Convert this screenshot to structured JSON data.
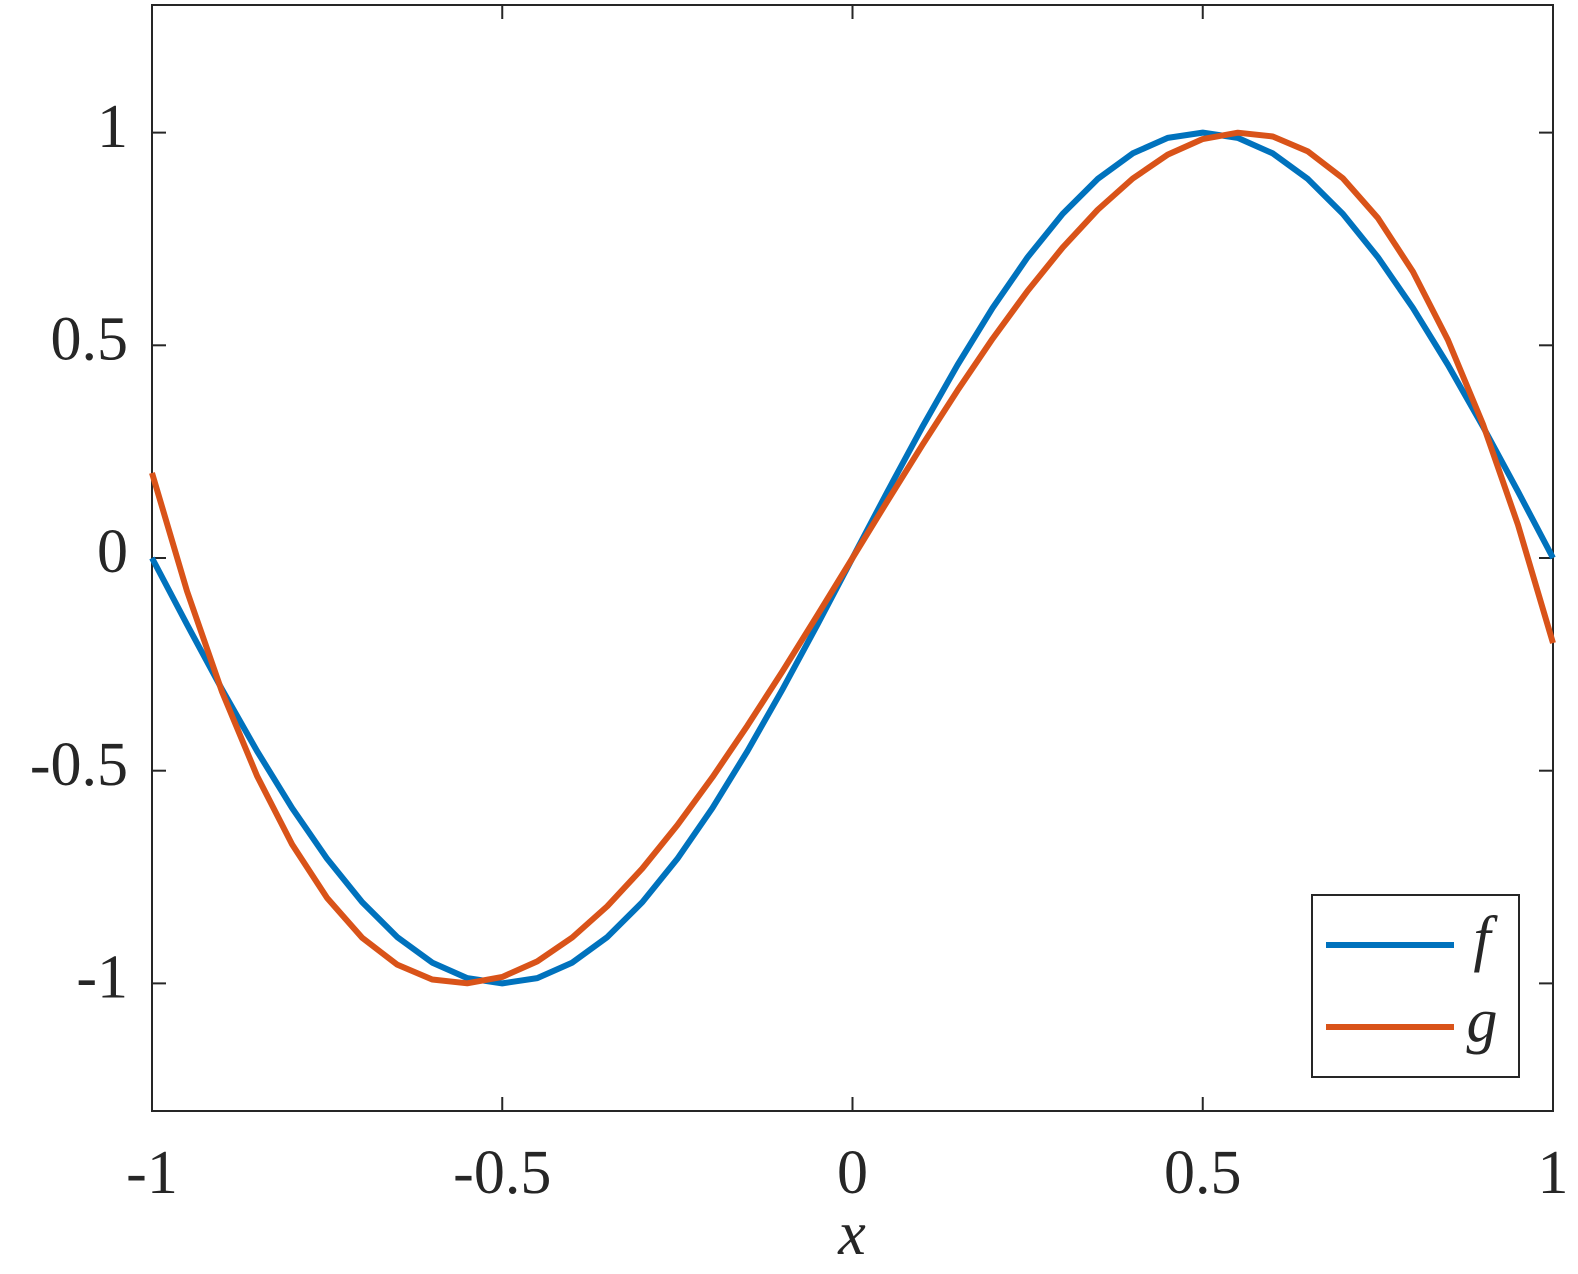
{
  "chart_data": {
    "type": "line",
    "x_label": "x",
    "x": [
      -1,
      -0.95,
      -0.9,
      -0.85,
      -0.8,
      -0.75,
      -0.7,
      -0.65,
      -0.6,
      -0.55,
      -0.5,
      -0.45,
      -0.4,
      -0.35,
      -0.3,
      -0.25,
      -0.2,
      -0.15,
      -0.1,
      -0.05,
      0,
      0.05,
      0.1,
      0.15,
      0.2,
      0.25,
      0.3,
      0.35,
      0.4,
      0.45,
      0.5,
      0.55,
      0.6,
      0.65,
      0.7,
      0.75,
      0.8,
      0.85,
      0.9,
      0.95,
      1
    ],
    "series": [
      {
        "name": "f",
        "color": "#0072bd",
        "values": [
          0,
          -0.1564,
          -0.309,
          -0.454,
          -0.5878,
          -0.7071,
          -0.809,
          -0.891,
          -0.9511,
          -0.9877,
          -1,
          -0.9877,
          -0.9511,
          -0.891,
          -0.809,
          -0.7071,
          -0.5878,
          -0.454,
          -0.309,
          -0.1564,
          0,
          0.1564,
          0.309,
          0.454,
          0.5878,
          0.7071,
          0.809,
          0.891,
          0.9511,
          0.9877,
          1,
          0.9877,
          0.9511,
          0.891,
          0.809,
          0.7071,
          0.5878,
          0.454,
          0.309,
          0.1564,
          0
        ]
      },
      {
        "name": "g",
        "color": "#d95319",
        "values": [
          0.2,
          -0.078,
          -0.3147,
          -0.5124,
          -0.6732,
          -0.7993,
          -0.8928,
          -0.956,
          -0.9909,
          -0.9998,
          -0.9849,
          -0.9482,
          -0.892,
          -0.8185,
          -0.7298,
          -0.628,
          -0.5155,
          -0.3942,
          -0.2664,
          -0.1343,
          0,
          0.1343,
          0.2664,
          0.3942,
          0.5155,
          0.628,
          0.7298,
          0.8185,
          0.892,
          0.9482,
          0.9849,
          0.9998,
          0.9909,
          0.956,
          0.8928,
          0.7993,
          0.6732,
          0.5124,
          0.3147,
          0.078,
          -0.2
        ]
      }
    ],
    "xlim": [
      -1,
      1
    ],
    "ylim": [
      -1.3,
      1.3
    ],
    "xticks": [
      -1,
      -0.5,
      0,
      0.5,
      1
    ],
    "yticks": [
      -1,
      -0.5,
      0,
      0.5,
      1
    ],
    "grid": false,
    "legend_position": "lower right"
  }
}
